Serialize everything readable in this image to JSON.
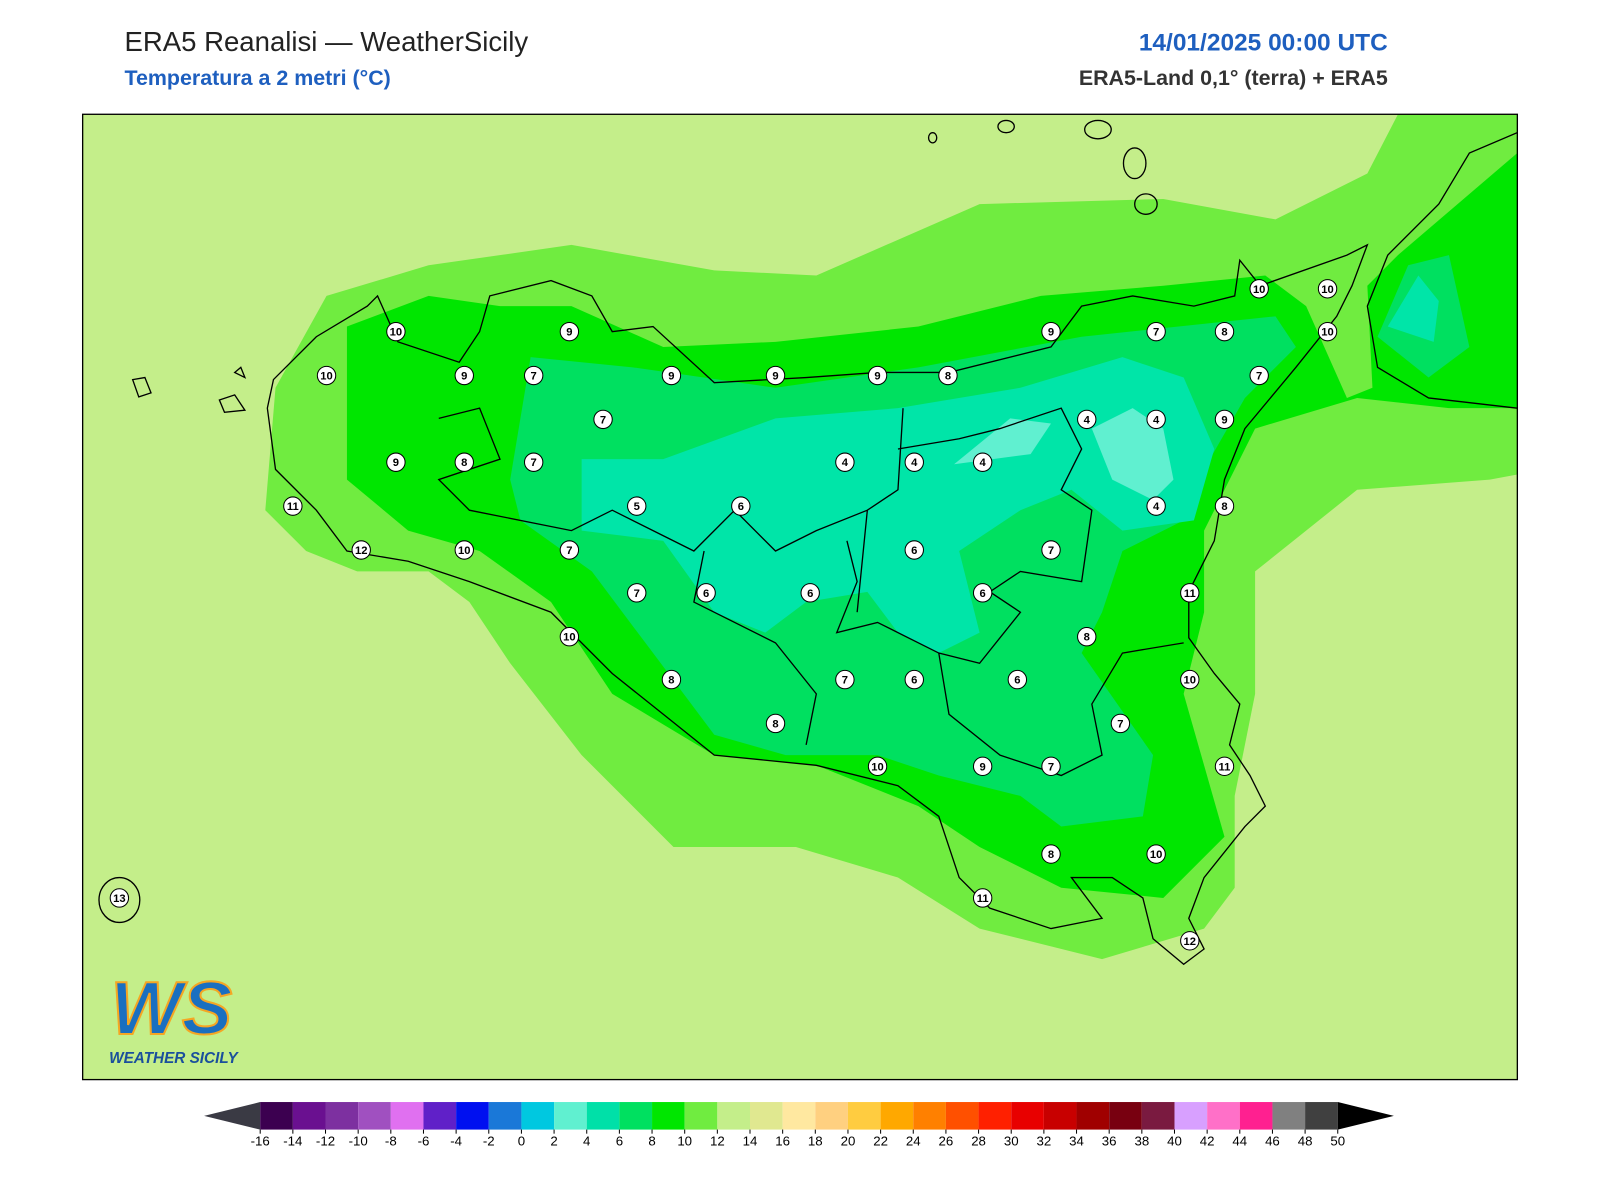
{
  "header": {
    "title": "ERA5 Reanalisi — WeatherSicily",
    "subtitle": "Temperatura a 2 metri (°C)",
    "datetime": "14/01/2025 00:00 UTC",
    "source": "ERA5-Land 0,1° (terra) + ERA5"
  },
  "stations": [
    10,
    10,
    9,
    7,
    9,
    9,
    9,
    9,
    8,
    9,
    7,
    8,
    10,
    10,
    10,
    7,
    7,
    9,
    8,
    7,
    4,
    4,
    4,
    4,
    4,
    9,
    11,
    5,
    6,
    4,
    8,
    12,
    10,
    7,
    6,
    7,
    7,
    6,
    6,
    6,
    11,
    10,
    8,
    8,
    7,
    6,
    6,
    10,
    8,
    7,
    10,
    9,
    7,
    11,
    8,
    10,
    11,
    13,
    12
  ],
  "colorbar": {
    "ticks": [
      -16,
      -14,
      -12,
      -10,
      -8,
      -6,
      -4,
      -2,
      0,
      2,
      4,
      6,
      8,
      10,
      12,
      14,
      16,
      18,
      20,
      22,
      24,
      26,
      28,
      30,
      32,
      34,
      36,
      38,
      40,
      42,
      44,
      46,
      48,
      50
    ],
    "colors": [
      "#3c0050",
      "#6a1090",
      "#7d30a0",
      "#a050c0",
      "#e070f0",
      "#6020c8",
      "#0010f0",
      "#1a78d8",
      "#00c8e0",
      "#60f0d0",
      "#00e0a8",
      "#00e060",
      "#00e600",
      "#70ec40",
      "#c4ee8a",
      "#e0e890",
      "#ffe8a0",
      "#ffd080",
      "#ffcc40",
      "#ffa800",
      "#ff8000",
      "#ff5000",
      "#ff2000",
      "#e80000",
      "#c80000",
      "#a00000",
      "#780010",
      "#7a1a40",
      "#d8a0ff",
      "#ff70c8",
      "#ff2090",
      "#808080",
      "#404040"
    ],
    "extend_colors": [
      "#3a3a44",
      "#000000"
    ]
  },
  "logo": {
    "mark": "WS",
    "text": "WEATHER SICILY"
  }
}
